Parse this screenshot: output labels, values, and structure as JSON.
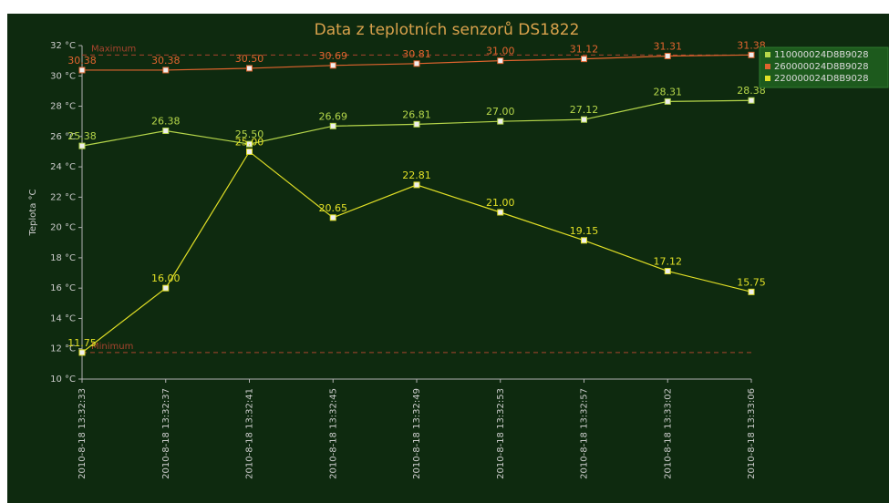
{
  "chart_data": {
    "type": "line",
    "title": "Data z teplotních senzorů DS1822",
    "y_label": "Teplota °C",
    "categories": [
      "2010-8-18 13:32:33",
      "2010-8-18 13:32:37",
      "2010-8-18 13:32:41",
      "2010-8-18 13:32:45",
      "2010-8-18 13:32:49",
      "2010-8-18 13:32:53",
      "2010-8-18 13:32:57",
      "2010-8-18 13:33:02",
      "2010-8-18 13:33:06"
    ],
    "series": [
      {
        "name": "110000024D8B9028",
        "color": "#b5d64a",
        "values": [
          25.38,
          26.38,
          25.5,
          26.69,
          26.81,
          27.0,
          27.12,
          28.31,
          28.38
        ],
        "value_labels": [
          "25.38",
          "26.38",
          "25.50",
          "26.69",
          "26.81",
          "27.00",
          "27.12",
          "28.31",
          "28.38"
        ]
      },
      {
        "name": "260000024D8B9028",
        "color": "#e0642e",
        "values": [
          30.38,
          30.38,
          30.5,
          30.69,
          30.81,
          31.0,
          31.12,
          31.31,
          31.38
        ],
        "value_labels": [
          "30.38",
          "30.38",
          "30.50",
          "30.69",
          "30.81",
          "31.00",
          "31.12",
          "31.31",
          "31.38"
        ]
      },
      {
        "name": "220000024D8B9028",
        "color": "#e2e026",
        "values": [
          11.75,
          16.0,
          25.0,
          20.65,
          22.81,
          21.0,
          19.15,
          17.12,
          15.75
        ],
        "value_labels": [
          "11.75",
          "16.00",
          "25.00",
          "20.65",
          "22.81",
          "21.00",
          "19.15",
          "17.12",
          "15.75"
        ]
      }
    ],
    "thresholds": [
      {
        "label": "Maximum",
        "value": 31.38,
        "color": "#a8442e"
      },
      {
        "label": "Minimum",
        "value": 11.75,
        "color": "#a8442e"
      }
    ],
    "ylim": [
      10,
      32
    ],
    "yticks": [
      {
        "value": 10,
        "label": "10 °C"
      },
      {
        "value": 12,
        "label": "12 °C"
      },
      {
        "value": 14,
        "label": "14 °C"
      },
      {
        "value": 16,
        "label": "16 °C"
      },
      {
        "value": 18,
        "label": "18 °C"
      },
      {
        "value": 20,
        "label": "20 °C"
      },
      {
        "value": 22,
        "label": "22 °C"
      },
      {
        "value": 24,
        "label": "24 °C"
      },
      {
        "value": 26,
        "label": "26 °C"
      },
      {
        "value": 28,
        "label": "28 °C"
      },
      {
        "value": 30,
        "label": "30 °C"
      },
      {
        "value": 32,
        "label": "32 °C"
      }
    ],
    "grid": false,
    "legend": "top-right"
  }
}
